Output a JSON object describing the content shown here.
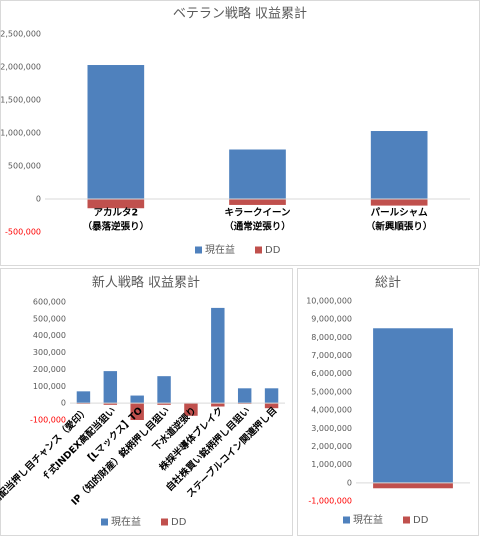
{
  "chart_data": [
    {
      "type": "bar",
      "title": "ベテラン戦略 収益累計",
      "categories": [
        [
          "アカルタ2",
          "（暴落逆張り）"
        ],
        [
          "キラークイーン",
          "（通常逆張り）"
        ],
        [
          "パールシャム",
          "（新興順張り）"
        ]
      ],
      "series": [
        {
          "name": "現在益",
          "color": "#4f81bd",
          "values": [
            2030000,
            750000,
            1030000
          ]
        },
        {
          "name": "DD",
          "color": "#c0504d",
          "values": [
            -140000,
            -90000,
            -100000
          ]
        }
      ],
      "ylim": [
        -500000,
        2500000
      ],
      "yticks": [
        {
          "value": -500000,
          "label": "-500,000"
        },
        0,
        {
          "value": 500000,
          "label": "500,000"
        },
        {
          "value": 1000000,
          "label": "1,000,000"
        },
        {
          "value": 1500000,
          "label": "1,500,000"
        },
        {
          "value": 2000000,
          "label": "2,000,000"
        },
        {
          "value": 2500000,
          "label": "2,500,000"
        }
      ],
      "negative_tick_color": "#ff0000",
      "grid": false,
      "legend": "bottom"
    },
    {
      "type": "bar",
      "title": "新人戦略 収益累計",
      "categories": [
        [
          "高配当押し目チャンス（愛印）"
        ],
        [
          "ｆ式INDEX高配当狙い"
        ],
        [
          "【Lマックス】TO"
        ],
        [
          "IP（知的財産）銘柄押し目狙い"
        ],
        [
          "下水道逆張り"
        ],
        [
          "株採半導体ブレイク"
        ],
        [
          "自社株買い銘柄押し目狙い"
        ],
        [
          "ステーブルコイン関連押し目"
        ]
      ],
      "series": [
        {
          "name": "現在益",
          "color": "#4f81bd",
          "values": [
            70000,
            190000,
            45000,
            160000,
            0,
            565000,
            88000,
            88000
          ]
        },
        {
          "name": "DD",
          "color": "#c0504d",
          "values": [
            -5000,
            -10000,
            -100000,
            -10000,
            -75000,
            -20000,
            -5000,
            -30000
          ]
        }
      ],
      "ylim": [
        -100000,
        600000
      ],
      "yticks": [
        {
          "value": -100000,
          "label": "-100,000"
        },
        0,
        {
          "value": 100000,
          "label": "100,000"
        },
        {
          "value": 200000,
          "label": "200,000"
        },
        {
          "value": 300000,
          "label": "300,000"
        },
        {
          "value": 400000,
          "label": "400,000"
        },
        {
          "value": 500000,
          "label": "500,000"
        },
        {
          "value": 600000,
          "label": "600,000"
        }
      ],
      "negative_tick_color": "#ff0000",
      "grid": false,
      "legend": "bottom"
    },
    {
      "type": "bar",
      "title": "総計",
      "categories": [
        null
      ],
      "series": [
        {
          "name": "現在益",
          "color": "#4f81bd",
          "values": [
            8500000
          ]
        },
        {
          "name": "DD",
          "color": "#c0504d",
          "values": [
            -300000
          ]
        }
      ],
      "ylim": [
        -1000000,
        10000000
      ],
      "yticks": [
        {
          "value": -1000000,
          "label": "-1,000,000"
        },
        0,
        {
          "value": 1000000,
          "label": "1,000,000"
        },
        {
          "value": 2000000,
          "label": "2,000,000"
        },
        {
          "value": 3000000,
          "label": "3,000,000"
        },
        {
          "value": 4000000,
          "label": "4,000,000"
        },
        {
          "value": 5000000,
          "label": "5,000,000"
        },
        {
          "value": 6000000,
          "label": "6,000,000"
        },
        {
          "value": 7000000,
          "label": "7,000,000"
        },
        {
          "value": 8000000,
          "label": "8,000,000"
        },
        {
          "value": 9000000,
          "label": "9,000,000"
        },
        {
          "value": 10000000,
          "label": "10,000,000"
        }
      ],
      "negative_tick_color": "#ff0000",
      "grid": false,
      "legend": "bottom"
    }
  ]
}
